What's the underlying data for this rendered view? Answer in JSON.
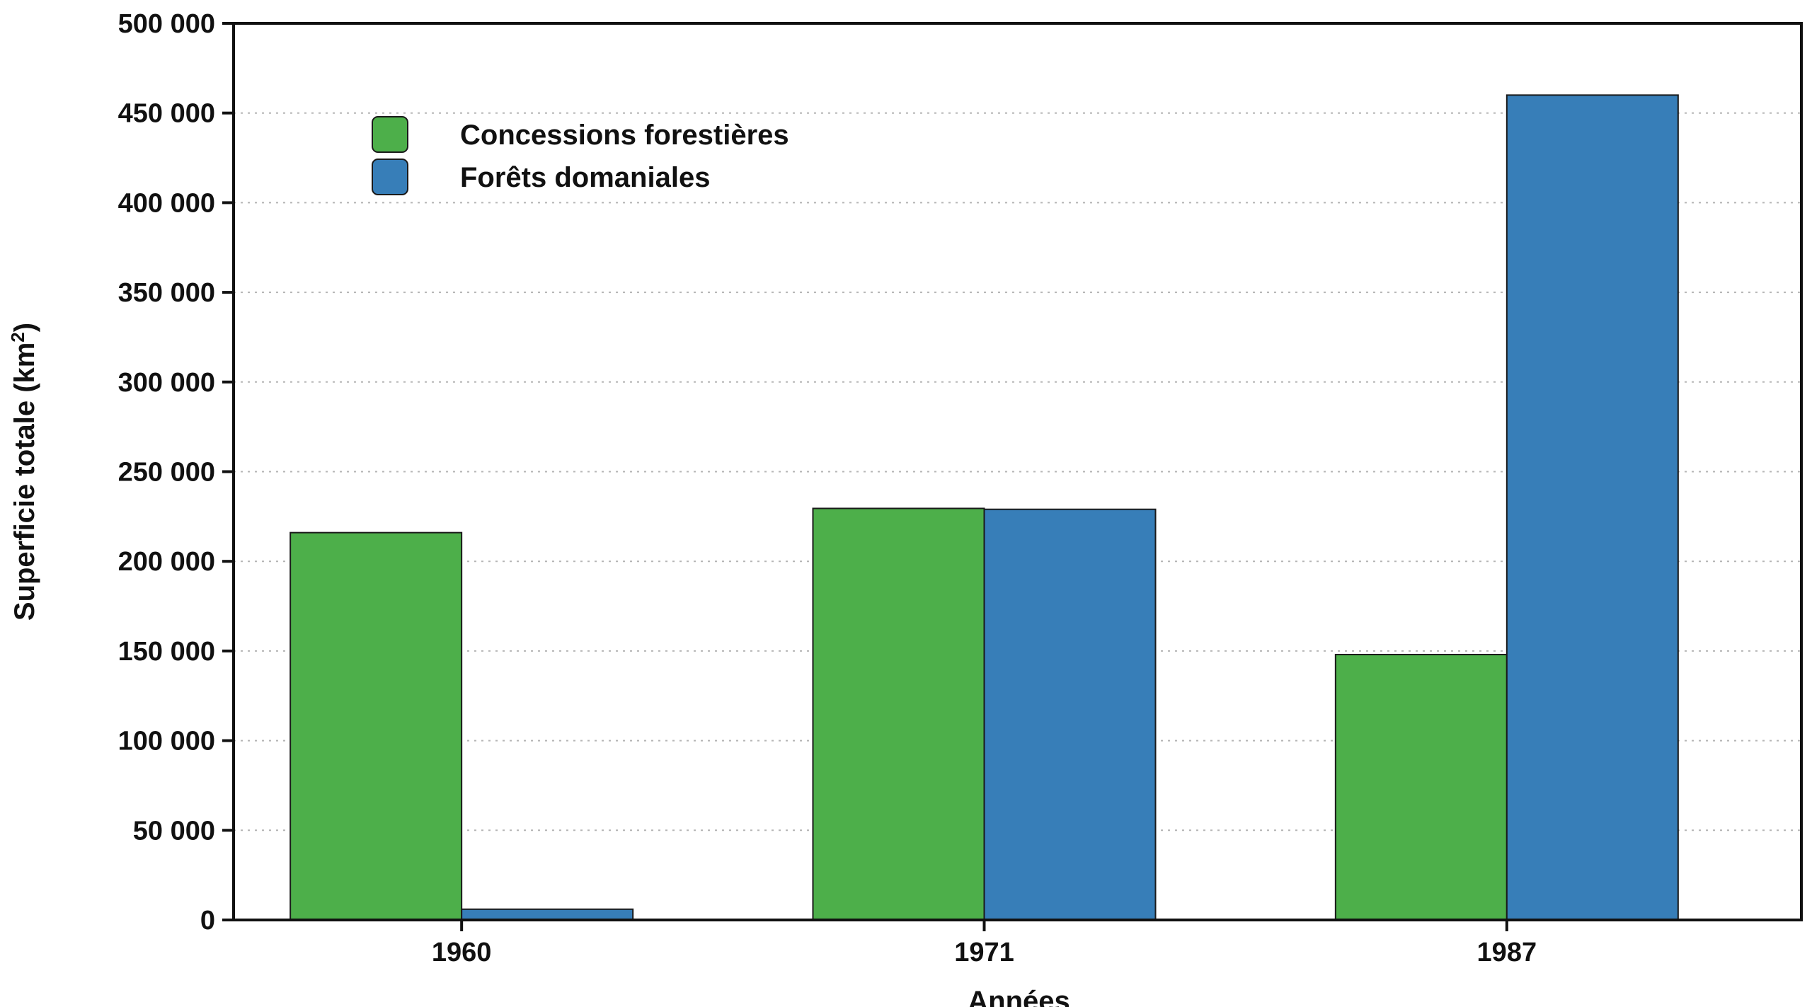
{
  "chart_data": {
    "type": "bar",
    "title": "",
    "xlabel": "Années",
    "ylabel_main": "Superficie totale (km",
    "ylabel_sup": "2",
    "ylabel_close": ")",
    "categories": [
      "1960",
      "1971",
      "1987"
    ],
    "series": [
      {
        "name": "Concessions forestières",
        "color": "#4daf4a",
        "values": [
          216000,
          229500,
          148000
        ]
      },
      {
        "name": "Forêts domaniales",
        "color": "#377eb8",
        "values": [
          6000,
          229000,
          460000
        ]
      }
    ],
    "ylim": [
      0,
      500000
    ],
    "yticks": [
      0,
      50000,
      100000,
      150000,
      200000,
      250000,
      300000,
      350000,
      400000,
      450000,
      500000
    ],
    "ytick_labels": [
      "0",
      "50 000",
      "100 000",
      "150 000",
      "200 000",
      "250 000",
      "300 000",
      "350 000",
      "400 000",
      "450 000",
      "500 000"
    ],
    "grid": "horizontal dotted",
    "legend_position": "top-left"
  }
}
